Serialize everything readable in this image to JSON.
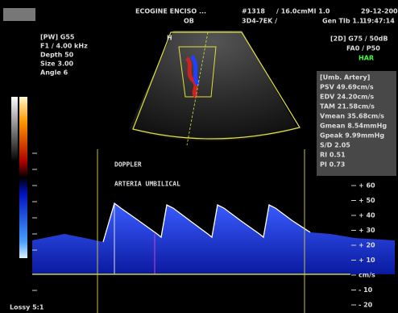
{
  "header": {
    "site": "ECOGINE  ENCISO ...",
    "exam": "OB",
    "id": "#1318",
    "depth": "/ 16.0cmMI  1.0",
    "date": "29-12-200",
    "probe": "3D4-7EK /",
    "gen": "Gen  TIb 1.1",
    "time": "19:47:14",
    "marker": "H"
  },
  "left_params": [
    "[PW]  G55",
    "F1 / 4.00 kHz",
    "Depth  50",
    "Size   3.00",
    "Angle  6"
  ],
  "right_params": [
    "[2D] G75 / 50dB",
    "FA0 / P50",
    "HAR"
  ],
  "measurements": {
    "title": "[Umb. Artery]",
    "rows": [
      "PSV 49.69cm/s",
      "EDV 24.20cm/s",
      "TAM 21.58cm/s",
      "Vmean 35.68cm/s",
      "Gmean 8.54mmHg",
      "Gpeak 9.99mmHg",
      "S/D 2.05",
      "RI  0.51",
      "PI  0.73"
    ]
  },
  "annotations": [
    "DOPPLER",
    "ARTERIA UMBILICAL"
  ],
  "scale": [
    "+ 60",
    "+ 50",
    "+ 40",
    "+ 30",
    "+ 20",
    "+ 10",
    "cm/s",
    "- 10",
    "- 20"
  ],
  "footer": "Lossy 5:1"
}
